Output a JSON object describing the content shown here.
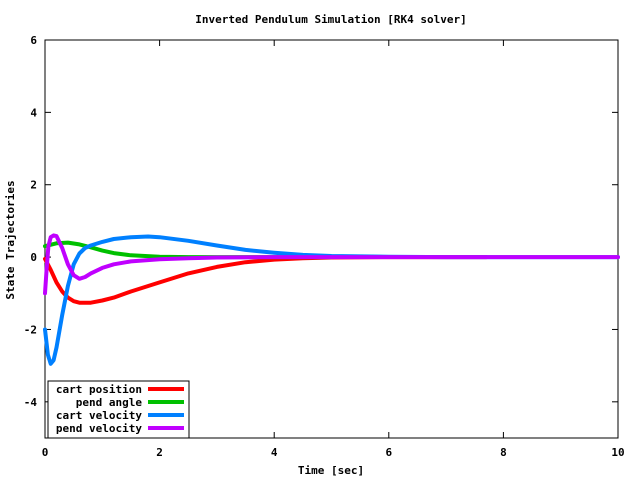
{
  "chart_data": {
    "type": "line",
    "title": "Inverted Pendulum Simulation [RK4 solver]",
    "xlabel": "Time [sec]",
    "ylabel": "State Trajectories",
    "xlim": [
      0,
      10
    ],
    "ylim": [
      -5,
      6
    ],
    "xticks": [
      0,
      2,
      4,
      6,
      8,
      10
    ],
    "yticks": [
      -4,
      -2,
      0,
      2,
      4,
      6
    ],
    "grid": false,
    "legend_position": "bottom-left",
    "series": [
      {
        "name": "cart position",
        "color": "#ff0000",
        "x": [
          0,
          0.1,
          0.2,
          0.3,
          0.4,
          0.5,
          0.6,
          0.8,
          1.0,
          1.2,
          1.5,
          2.0,
          2.5,
          3.0,
          3.5,
          4.0,
          4.5,
          5.0,
          6.0,
          7.0,
          7.7
        ],
        "y": [
          -0.05,
          -0.35,
          -0.7,
          -0.95,
          -1.12,
          -1.22,
          -1.26,
          -1.26,
          -1.2,
          -1.12,
          -0.95,
          -0.7,
          -0.45,
          -0.27,
          -0.14,
          -0.07,
          -0.03,
          -0.01,
          0.0,
          0.0,
          0.0
        ]
      },
      {
        "name": "pend angle",
        "color": "#00c000",
        "x": [
          0,
          0.2,
          0.4,
          0.6,
          0.8,
          1.0,
          1.2,
          1.5,
          2.0,
          2.5,
          3.0,
          4.0,
          5.0
        ],
        "y": [
          0.3,
          0.38,
          0.4,
          0.35,
          0.27,
          0.18,
          0.11,
          0.05,
          0.01,
          0.0,
          0.0,
          0.0,
          0.0
        ]
      },
      {
        "name": "cart velocity",
        "color": "#0080ff",
        "x": [
          0,
          0.05,
          0.1,
          0.15,
          0.2,
          0.3,
          0.4,
          0.5,
          0.6,
          0.7,
          0.8,
          1.0,
          1.2,
          1.5,
          1.8,
          2.0,
          2.5,
          3.0,
          3.5,
          4.0,
          4.5,
          5.0,
          6.0,
          7.0,
          8.0,
          10.0
        ],
        "y": [
          -2.0,
          -2.7,
          -2.95,
          -2.85,
          -2.5,
          -1.6,
          -0.8,
          -0.2,
          0.1,
          0.25,
          0.32,
          0.42,
          0.5,
          0.55,
          0.57,
          0.55,
          0.45,
          0.32,
          0.2,
          0.12,
          0.06,
          0.03,
          0.01,
          0.0,
          0.0,
          0.0
        ]
      },
      {
        "name": "pend velocity",
        "color": "#c000ff",
        "x": [
          0,
          0.03,
          0.06,
          0.1,
          0.15,
          0.2,
          0.3,
          0.4,
          0.5,
          0.6,
          0.7,
          0.8,
          1.0,
          1.2,
          1.5,
          2.0,
          2.5,
          3.0,
          4.0,
          5.0,
          6.0,
          7.0,
          8.0,
          10.0
        ],
        "y": [
          -1.0,
          -0.3,
          0.3,
          0.55,
          0.6,
          0.58,
          0.25,
          -0.2,
          -0.5,
          -0.6,
          -0.55,
          -0.45,
          -0.3,
          -0.2,
          -0.12,
          -0.06,
          -0.03,
          -0.01,
          0.0,
          0.0,
          0.0,
          0.0,
          0.0,
          0.0
        ]
      }
    ]
  }
}
